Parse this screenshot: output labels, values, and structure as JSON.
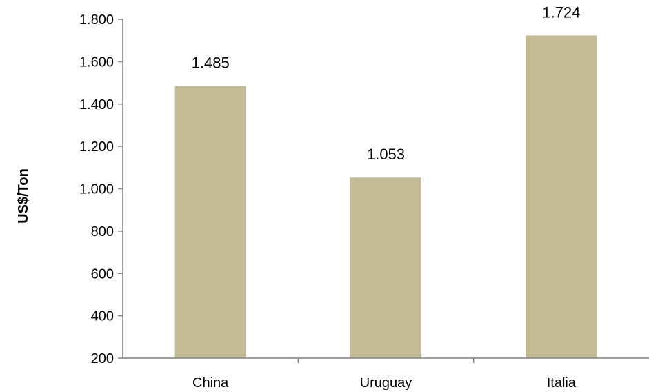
{
  "chart_data": {
    "type": "bar",
    "categories": [
      "China",
      "Uruguay",
      "Italia"
    ],
    "values": [
      1485,
      1053,
      1724
    ],
    "value_labels": [
      "1.485",
      "1.053",
      "1.724"
    ],
    "ylabel": "US$/Ton",
    "xlabel": "",
    "ylim": [
      200,
      1800
    ],
    "yticks": [
      200,
      400,
      600,
      800,
      1000,
      1200,
      1400,
      1600,
      1800
    ],
    "ytick_labels": [
      "200",
      "400",
      "600",
      "800",
      "1.000",
      "1.200",
      "1.400",
      "1.600",
      "1.800"
    ],
    "grid": false,
    "legend": "none",
    "bar_color": "#c4bc96",
    "axis_color": "#808080"
  }
}
